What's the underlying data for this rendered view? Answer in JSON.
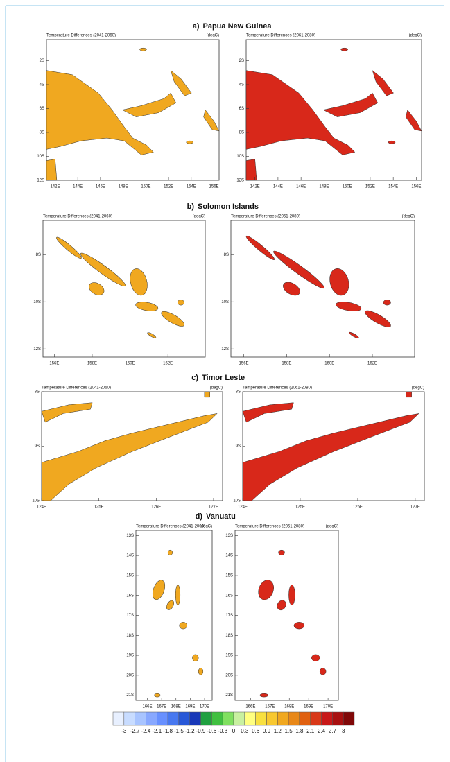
{
  "figure": {
    "sections": [
      {
        "label": "a)",
        "title": "Papua New Guinea",
        "maps": [
          {
            "title": "Temperature Differences (2041-2060)",
            "unit": "(degC)"
          },
          {
            "title": "Temperature Differences (2061-2080)",
            "unit": "(degC)"
          }
        ],
        "yticks": [
          "2S",
          "4S",
          "6S",
          "8S",
          "10S",
          "12S"
        ],
        "xticks": [
          "142E",
          "144E",
          "146E",
          "148E",
          "150E",
          "152E",
          "154E",
          "156E"
        ]
      },
      {
        "label": "b)",
        "title": "Solomon Islands",
        "maps": [
          {
            "title": "Temperature Differences (2041-2060)",
            "unit": "(degC)"
          },
          {
            "title": "Temperature Differences (2061-2080)",
            "unit": "(degC)"
          }
        ],
        "yticks": [
          "8S",
          "10S",
          "12S"
        ],
        "xticks": [
          "156E",
          "158E",
          "160E",
          "162E"
        ]
      },
      {
        "label": "c)",
        "title": "Timor Leste",
        "maps": [
          {
            "title": "Temperature Differences (2041-2060)",
            "unit": "(degC)"
          },
          {
            "title": "Temperature Differences (2061-2080)",
            "unit": "(degC)"
          }
        ],
        "yticks": [
          "8S",
          "9S",
          "10S"
        ],
        "xticks": [
          "124E",
          "125E",
          "126E",
          "127E"
        ]
      },
      {
        "label": "d)",
        "title": "Vanuatu",
        "maps": [
          {
            "title": "Temperature Differences (2041-2060)",
            "unit": "(degC)"
          },
          {
            "title": "Temperature Differences (2061-2080)",
            "unit": "(degC)"
          }
        ],
        "yticks": [
          "13S",
          "14S",
          "15S",
          "16S",
          "17S",
          "18S",
          "19S",
          "20S",
          "21S"
        ],
        "xticks": [
          "166E",
          "167E",
          "168E",
          "169E",
          "170E"
        ]
      }
    ],
    "colorbar": {
      "labels": [
        -3,
        -2.7,
        -2.4,
        -2.1,
        -1.8,
        -1.5,
        -1.2,
        -0.9,
        -0.6,
        -0.3,
        0,
        0.3,
        0.6,
        0.9,
        1.2,
        1.5,
        1.8,
        2.1,
        2.4,
        2.7,
        3
      ],
      "colors": [
        "#e8f0ff",
        "#c8dcff",
        "#a8c4ff",
        "#88a8ff",
        "#6890ff",
        "#4878f0",
        "#2858d8",
        "#1838b8",
        "#20a040",
        "#40c040",
        "#80e060",
        "#c8f0a0",
        "#ffff80",
        "#f8e040",
        "#f8c830",
        "#f0a820",
        "#e88818",
        "#e06010",
        "#d83818",
        "#c81818",
        "#a81010",
        "#800808"
      ]
    }
  }
}
